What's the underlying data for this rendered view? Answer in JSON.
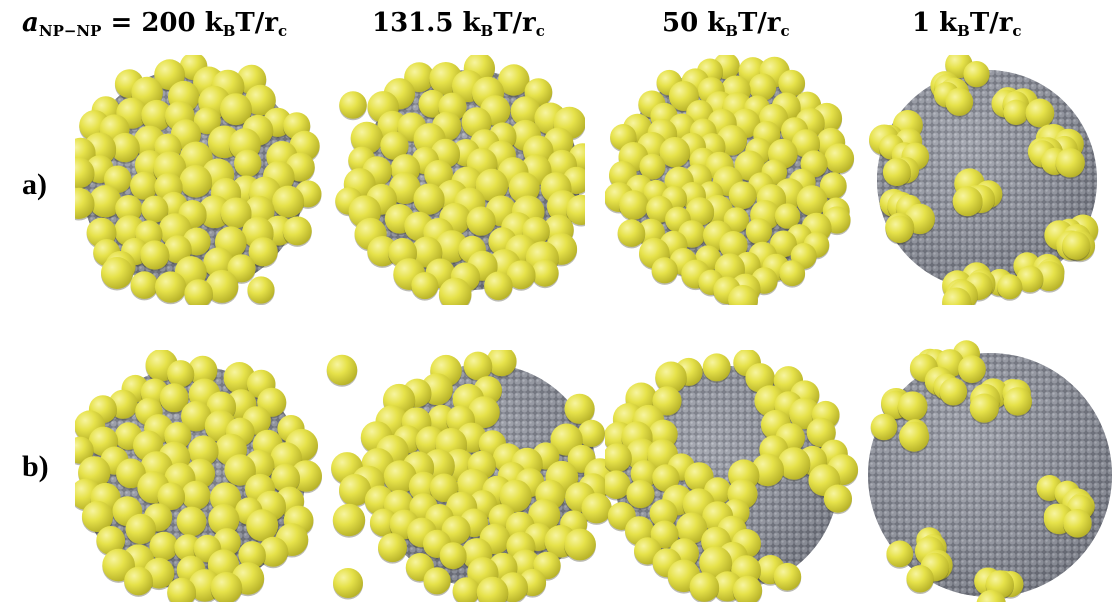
{
  "headers": [
    {
      "param_symbol": "a",
      "param_subscript": "NP−NP",
      "value": "200",
      "unit_main": "k",
      "unit_sub": "B",
      "unit_tail": "T/r",
      "unit_tail_sub": "c"
    },
    {
      "value": "131.5",
      "unit_main": "k",
      "unit_sub": "B",
      "unit_tail": "T/r",
      "unit_tail_sub": "c"
    },
    {
      "value": "50",
      "unit_main": "k",
      "unit_sub": "B",
      "unit_tail": "T/r",
      "unit_tail_sub": "c"
    },
    {
      "value": "1",
      "unit_main": "k",
      "unit_sub": "B",
      "unit_tail": "T/r",
      "unit_tail_sub": "c"
    }
  ],
  "equals_sign": "=",
  "rows": [
    {
      "label": "a)"
    },
    {
      "label": "b)"
    }
  ],
  "colors": {
    "nanoparticle": "#e6e24a",
    "nanoparticle_shade": "#b8b32a",
    "nanoparticle_highlight": "#f7f4a0",
    "core": "#8a8d97",
    "core_shade": "#5d606a"
  }
}
